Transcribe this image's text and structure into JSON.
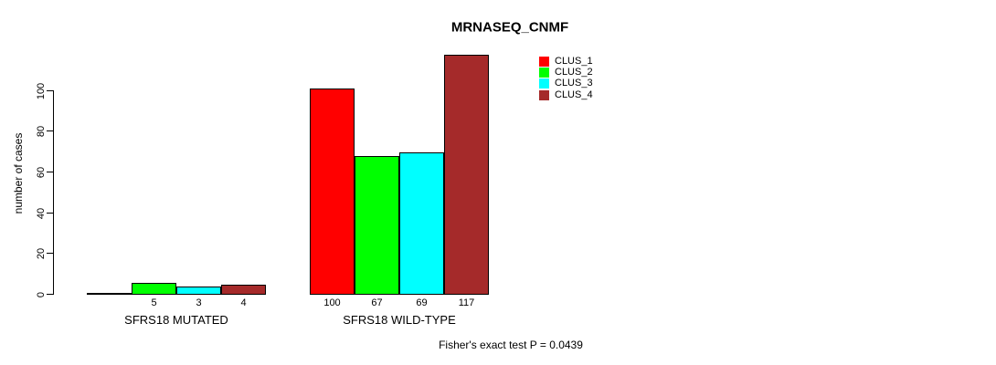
{
  "chart_data": {
    "type": "bar",
    "title": "MRNASEQ_CNMF",
    "xlabel": "",
    "ylabel": "number of cases",
    "categories": [
      "SFRS18 MUTATED",
      "SFRS18 WILD-TYPE"
    ],
    "series": [
      {
        "name": "CLUS_1",
        "color": "#FF0000",
        "values": [
          0,
          100
        ]
      },
      {
        "name": "CLUS_2",
        "color": "#00FF00",
        "values": [
          5,
          67
        ]
      },
      {
        "name": "CLUS_3",
        "color": "#00FFFF",
        "values": [
          3,
          69
        ]
      },
      {
        "name": "CLUS_4",
        "color": "#A52A2A",
        "values": [
          4,
          117
        ]
      }
    ],
    "value_labels": [
      [
        "",
        "5",
        "3",
        "4"
      ],
      [
        "100",
        "67",
        "69",
        "117"
      ]
    ],
    "y_ticks": [
      0,
      20,
      40,
      60,
      80,
      100
    ],
    "ylim": [
      0,
      117
    ],
    "grid": false,
    "legend_position": "top-right",
    "bar_border_color": "#000000",
    "annotation": "Fisher's exact test P = 0.0439"
  }
}
